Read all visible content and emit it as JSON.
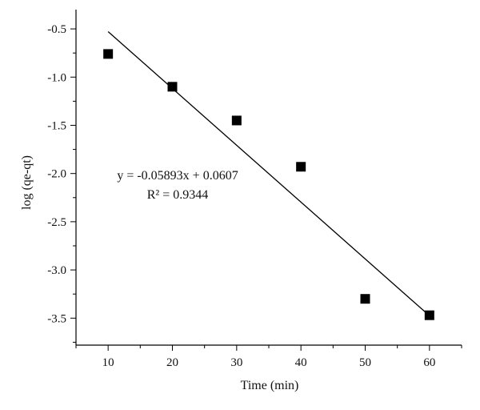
{
  "chart_data": {
    "type": "scatter",
    "title": "",
    "xlabel": "Time (min)",
    "ylabel": "log (qe-qt)",
    "xlim": [
      5,
      65
    ],
    "ylim": [
      -3.78,
      -0.3
    ],
    "x_ticks": [
      10,
      20,
      30,
      40,
      50,
      60
    ],
    "x_tick_labels": [
      "10",
      "20",
      "30",
      "40",
      "50",
      "60"
    ],
    "y_ticks": [
      -0.5,
      -1.0,
      -1.5,
      -2.0,
      -2.5,
      -3.0,
      -3.5
    ],
    "y_tick_labels": [
      "-0.5",
      "-1.0",
      "-1.5",
      "-2.0",
      "-2.5",
      "-3.0",
      "-3.5"
    ],
    "grid": false,
    "legend": "none",
    "series": [
      {
        "marker": "square",
        "color": "#000000",
        "x": [
          10,
          20,
          30,
          40,
          50,
          60
        ],
        "y": [
          -0.76,
          -1.1,
          -1.45,
          -1.93,
          -3.3,
          -3.47
        ]
      }
    ],
    "fit_line": {
      "slope": -0.05893,
      "intercept": 0.0607,
      "x_range": [
        10,
        60
      ],
      "color": "#000000"
    },
    "annotations": {
      "equation": "y = -0.05893x + 0.0607",
      "r_squared": "R² = 0.9344"
    }
  }
}
